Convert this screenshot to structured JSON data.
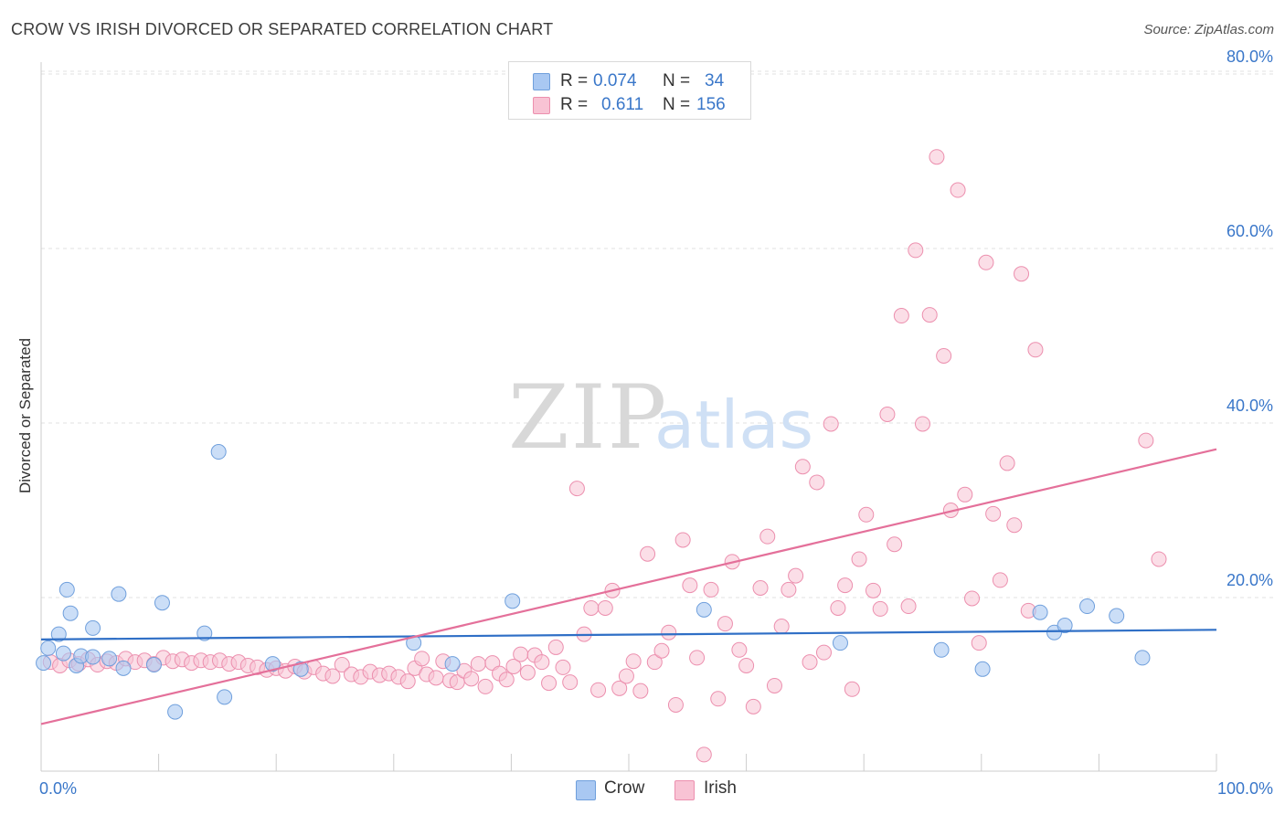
{
  "header": {
    "title": "CROW VS IRISH DIVORCED OR SEPARATED CORRELATION CHART",
    "source": "Source: ZipAtlas.com"
  },
  "watermark": {
    "zip": "ZIP",
    "atlas": "atlas"
  },
  "legend": {
    "rows": [
      {
        "r_label": "R = ",
        "r_value": "0.074",
        "n_label": "N = ",
        "n_value": "34",
        "color": "#a9c8f2",
        "stroke": "#6f9fdc"
      },
      {
        "r_label": "R = ",
        "r_value": "0.611",
        "n_label": "N = ",
        "n_value": "156",
        "color": "#f8c3d4",
        "stroke": "#ec8fae"
      }
    ]
  },
  "bottom_legend": {
    "crow": "Crow",
    "irish": "Irish"
  },
  "colors": {
    "crow_line": "#2f6fc6",
    "irish_line": "#e4709a",
    "axis_text": "#3a77c9",
    "grid": "#e2e2e2"
  },
  "chart_data": {
    "type": "scatter",
    "title": "CROW VS IRISH DIVORCED OR SEPARATED CORRELATION CHART",
    "xlabel": "",
    "ylabel": "Divorced or Separated",
    "xlim": [
      0,
      100
    ],
    "ylim": [
      0,
      85
    ],
    "x_tick_labels": [
      "0.0%",
      "100.0%"
    ],
    "y_ticks": [
      20,
      40,
      60,
      80
    ],
    "y_tick_labels": [
      "20.0%",
      "40.0%",
      "60.0%",
      "80.0%"
    ],
    "grid": true,
    "legend_position": "top-center",
    "series": [
      {
        "name": "Crow",
        "color": "#a9c8f2",
        "trend": {
          "x": [
            0,
            100
          ],
          "y": [
            15.2,
            16.3
          ]
        },
        "points": [
          {
            "x": 0.2,
            "y": 12.5
          },
          {
            "x": 0.6,
            "y": 14.2
          },
          {
            "x": 1.5,
            "y": 15.8
          },
          {
            "x": 1.9,
            "y": 13.6
          },
          {
            "x": 2.2,
            "y": 20.9
          },
          {
            "x": 2.5,
            "y": 18.2
          },
          {
            "x": 3.0,
            "y": 12.2
          },
          {
            "x": 3.4,
            "y": 13.3
          },
          {
            "x": 4.4,
            "y": 16.5
          },
          {
            "x": 4.4,
            "y": 13.2
          },
          {
            "x": 5.8,
            "y": 13.0
          },
          {
            "x": 6.6,
            "y": 20.4
          },
          {
            "x": 7.0,
            "y": 11.9
          },
          {
            "x": 9.6,
            "y": 12.3
          },
          {
            "x": 10.3,
            "y": 19.4
          },
          {
            "x": 11.4,
            "y": 6.9
          },
          {
            "x": 13.9,
            "y": 15.9
          },
          {
            "x": 15.1,
            "y": 36.7
          },
          {
            "x": 15.6,
            "y": 8.6
          },
          {
            "x": 19.7,
            "y": 12.4
          },
          {
            "x": 22.1,
            "y": 11.8
          },
          {
            "x": 31.7,
            "y": 14.8
          },
          {
            "x": 35.0,
            "y": 12.4
          },
          {
            "x": 40.1,
            "y": 19.6
          },
          {
            "x": 56.4,
            "y": 18.6
          },
          {
            "x": 68.0,
            "y": 14.8
          },
          {
            "x": 76.6,
            "y": 14.0
          },
          {
            "x": 80.1,
            "y": 11.8
          },
          {
            "x": 85.0,
            "y": 18.3
          },
          {
            "x": 86.2,
            "y": 16.0
          },
          {
            "x": 87.1,
            "y": 16.8
          },
          {
            "x": 89.0,
            "y": 19.0
          },
          {
            "x": 91.5,
            "y": 17.9
          },
          {
            "x": 93.7,
            "y": 13.1
          }
        ]
      },
      {
        "name": "Irish",
        "color": "#f8c3d4",
        "trend": {
          "x": [
            0,
            100
          ],
          "y": [
            5.5,
            37.0
          ]
        },
        "points": [
          {
            "x": 0.8,
            "y": 12.6
          },
          {
            "x": 1.6,
            "y": 12.2
          },
          {
            "x": 2.4,
            "y": 12.8
          },
          {
            "x": 3.2,
            "y": 12.4
          },
          {
            "x": 4.0,
            "y": 12.9
          },
          {
            "x": 4.8,
            "y": 12.3
          },
          {
            "x": 5.6,
            "y": 12.7
          },
          {
            "x": 6.4,
            "y": 12.5
          },
          {
            "x": 7.2,
            "y": 13.0
          },
          {
            "x": 8.0,
            "y": 12.6
          },
          {
            "x": 8.8,
            "y": 12.8
          },
          {
            "x": 9.6,
            "y": 12.4
          },
          {
            "x": 10.4,
            "y": 13.1
          },
          {
            "x": 11.2,
            "y": 12.7
          },
          {
            "x": 12.0,
            "y": 12.9
          },
          {
            "x": 12.8,
            "y": 12.5
          },
          {
            "x": 13.6,
            "y": 12.8
          },
          {
            "x": 14.4,
            "y": 12.6
          },
          {
            "x": 15.2,
            "y": 12.8
          },
          {
            "x": 16.0,
            "y": 12.4
          },
          {
            "x": 16.8,
            "y": 12.6
          },
          {
            "x": 17.6,
            "y": 12.2
          },
          {
            "x": 18.4,
            "y": 12.0
          },
          {
            "x": 19.2,
            "y": 11.7
          },
          {
            "x": 20.0,
            "y": 11.9
          },
          {
            "x": 20.8,
            "y": 11.6
          },
          {
            "x": 21.6,
            "y": 12.1
          },
          {
            "x": 22.4,
            "y": 11.5
          },
          {
            "x": 23.2,
            "y": 12.0
          },
          {
            "x": 24.0,
            "y": 11.3
          },
          {
            "x": 24.8,
            "y": 11.0
          },
          {
            "x": 25.6,
            "y": 12.3
          },
          {
            "x": 26.4,
            "y": 11.2
          },
          {
            "x": 27.2,
            "y": 10.9
          },
          {
            "x": 28.0,
            "y": 11.5
          },
          {
            "x": 28.8,
            "y": 11.1
          },
          {
            "x": 29.6,
            "y": 11.3
          },
          {
            "x": 30.4,
            "y": 10.9
          },
          {
            "x": 31.2,
            "y": 10.4
          },
          {
            "x": 31.8,
            "y": 11.9
          },
          {
            "x": 32.4,
            "y": 13.0
          },
          {
            "x": 32.8,
            "y": 11.2
          },
          {
            "x": 33.6,
            "y": 10.8
          },
          {
            "x": 34.2,
            "y": 12.7
          },
          {
            "x": 34.8,
            "y": 10.5
          },
          {
            "x": 35.4,
            "y": 10.3
          },
          {
            "x": 36.0,
            "y": 11.6
          },
          {
            "x": 36.6,
            "y": 10.7
          },
          {
            "x": 37.2,
            "y": 12.4
          },
          {
            "x": 37.8,
            "y": 9.8
          },
          {
            "x": 38.4,
            "y": 12.5
          },
          {
            "x": 39.0,
            "y": 11.3
          },
          {
            "x": 39.6,
            "y": 10.6
          },
          {
            "x": 40.2,
            "y": 12.1
          },
          {
            "x": 40.8,
            "y": 13.5
          },
          {
            "x": 41.4,
            "y": 11.4
          },
          {
            "x": 42.0,
            "y": 13.4
          },
          {
            "x": 42.6,
            "y": 12.6
          },
          {
            "x": 43.2,
            "y": 10.2
          },
          {
            "x": 43.8,
            "y": 14.3
          },
          {
            "x": 44.4,
            "y": 12.0
          },
          {
            "x": 45.0,
            "y": 10.3
          },
          {
            "x": 45.6,
            "y": 32.5
          },
          {
            "x": 46.2,
            "y": 15.8
          },
          {
            "x": 46.8,
            "y": 18.8
          },
          {
            "x": 47.4,
            "y": 9.4
          },
          {
            "x": 48.0,
            "y": 18.8
          },
          {
            "x": 48.6,
            "y": 20.8
          },
          {
            "x": 49.2,
            "y": 9.6
          },
          {
            "x": 49.8,
            "y": 11.0
          },
          {
            "x": 50.4,
            "y": 12.7
          },
          {
            "x": 51.0,
            "y": 9.3
          },
          {
            "x": 51.6,
            "y": 25.0
          },
          {
            "x": 52.2,
            "y": 12.6
          },
          {
            "x": 52.8,
            "y": 13.9
          },
          {
            "x": 53.4,
            "y": 16.0
          },
          {
            "x": 54.0,
            "y": 7.7
          },
          {
            "x": 54.6,
            "y": 26.6
          },
          {
            "x": 55.2,
            "y": 21.4
          },
          {
            "x": 55.8,
            "y": 13.1
          },
          {
            "x": 56.4,
            "y": 2.0
          },
          {
            "x": 57.0,
            "y": 20.9
          },
          {
            "x": 57.6,
            "y": 8.4
          },
          {
            "x": 58.2,
            "y": 17.0
          },
          {
            "x": 58.8,
            "y": 24.1
          },
          {
            "x": 59.4,
            "y": 14.0
          },
          {
            "x": 60.0,
            "y": 12.2
          },
          {
            "x": 60.6,
            "y": 7.5
          },
          {
            "x": 61.2,
            "y": 21.1
          },
          {
            "x": 61.8,
            "y": 27.0
          },
          {
            "x": 62.4,
            "y": 9.9
          },
          {
            "x": 63.0,
            "y": 16.7
          },
          {
            "x": 63.6,
            "y": 20.9
          },
          {
            "x": 64.2,
            "y": 22.5
          },
          {
            "x": 64.8,
            "y": 35.0
          },
          {
            "x": 65.4,
            "y": 12.6
          },
          {
            "x": 66.0,
            "y": 33.2
          },
          {
            "x": 66.6,
            "y": 13.7
          },
          {
            "x": 67.2,
            "y": 39.9
          },
          {
            "x": 67.8,
            "y": 18.8
          },
          {
            "x": 68.4,
            "y": 21.4
          },
          {
            "x": 69.0,
            "y": 9.5
          },
          {
            "x": 69.6,
            "y": 24.4
          },
          {
            "x": 70.2,
            "y": 29.5
          },
          {
            "x": 70.8,
            "y": 20.8
          },
          {
            "x": 71.4,
            "y": 18.7
          },
          {
            "x": 72.0,
            "y": 41.0
          },
          {
            "x": 72.6,
            "y": 26.1
          },
          {
            "x": 73.2,
            "y": 52.3
          },
          {
            "x": 73.8,
            "y": 19.0
          },
          {
            "x": 74.4,
            "y": 59.8
          },
          {
            "x": 75.0,
            "y": 39.9
          },
          {
            "x": 75.6,
            "y": 52.4
          },
          {
            "x": 76.2,
            "y": 70.5
          },
          {
            "x": 76.8,
            "y": 47.7
          },
          {
            "x": 77.4,
            "y": 30.0
          },
          {
            "x": 78.0,
            "y": 66.7
          },
          {
            "x": 78.6,
            "y": 31.8
          },
          {
            "x": 79.2,
            "y": 19.9
          },
          {
            "x": 79.8,
            "y": 14.8
          },
          {
            "x": 80.4,
            "y": 58.4
          },
          {
            "x": 81.0,
            "y": 29.6
          },
          {
            "x": 81.6,
            "y": 22.0
          },
          {
            "x": 82.2,
            "y": 35.4
          },
          {
            "x": 82.8,
            "y": 28.3
          },
          {
            "x": 83.4,
            "y": 57.1
          },
          {
            "x": 84.0,
            "y": 18.5
          },
          {
            "x": 84.6,
            "y": 48.4
          },
          {
            "x": 94.0,
            "y": 38.0
          },
          {
            "x": 95.1,
            "y": 24.4
          }
        ]
      }
    ]
  }
}
